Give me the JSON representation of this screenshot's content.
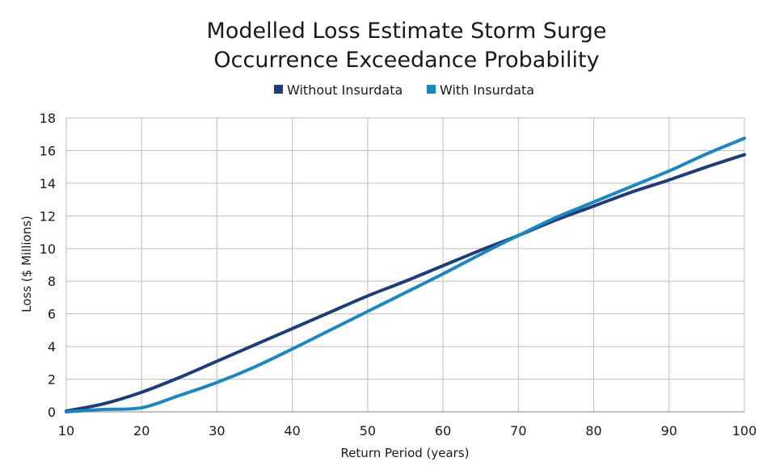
{
  "chart_data": {
    "type": "line",
    "title_lines": [
      "Modelled Loss Estimate Storm Surge",
      "Occurrence Exceedance Probability"
    ],
    "xlabel": "Return Period (years)",
    "ylabel": "Loss ($ Millions)",
    "xlim": [
      10,
      100
    ],
    "ylim": [
      0,
      18
    ],
    "x_ticks": [
      10,
      20,
      30,
      40,
      50,
      60,
      70,
      80,
      90,
      100
    ],
    "y_ticks": [
      0,
      2,
      4,
      6,
      8,
      10,
      12,
      14,
      16,
      18
    ],
    "grid": true,
    "legend_position": "top-center",
    "series": [
      {
        "name": "Without Insurdata",
        "color": "#1f3c7a",
        "x": [
          10,
          15,
          20,
          25,
          30,
          35,
          40,
          45,
          50,
          55,
          60,
          65,
          70,
          75,
          80,
          85,
          90,
          95,
          100
        ],
        "y": [
          0.05,
          0.5,
          1.2,
          2.1,
          3.1,
          4.1,
          5.1,
          6.1,
          7.1,
          8.0,
          8.95,
          9.9,
          10.8,
          11.75,
          12.6,
          13.45,
          14.2,
          15.0,
          15.75
        ]
      },
      {
        "name": "With Insurdata",
        "color": "#1c86c0",
        "x": [
          10,
          15,
          20,
          25,
          30,
          35,
          40,
          45,
          50,
          55,
          60,
          65,
          70,
          75,
          80,
          85,
          90,
          95,
          100
        ],
        "y": [
          0.0,
          0.15,
          0.25,
          1.0,
          1.8,
          2.75,
          3.85,
          5.0,
          6.15,
          7.3,
          8.45,
          9.65,
          10.8,
          11.9,
          12.85,
          13.8,
          14.75,
          15.8,
          16.75
        ]
      }
    ]
  }
}
